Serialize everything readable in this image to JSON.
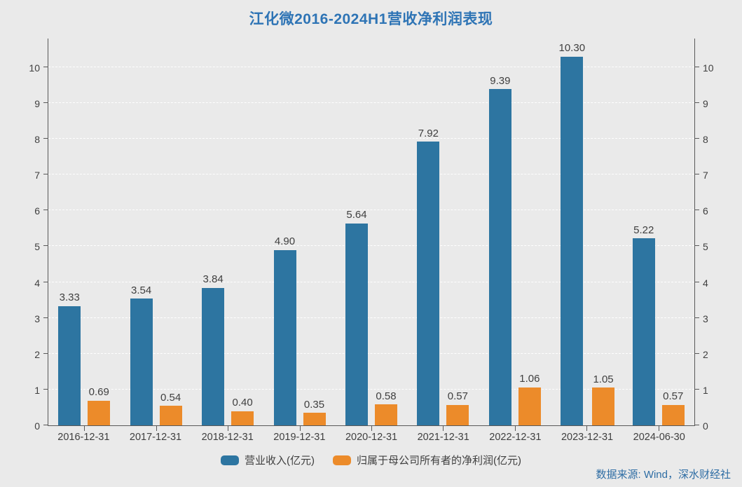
{
  "title": "江化微2016-2024H1营收净利润表现",
  "source": "数据来源: Wind，深水财经社",
  "colors": {
    "background": "#eaeaea",
    "title_text": "#2e74b5",
    "source_text": "#2e6da4",
    "label_text": "#3f3f3f",
    "axis_line": "#595959",
    "gridline": "#ffffff",
    "revenue_bar": "#2d75a1",
    "profit_bar": "#ec8b2a"
  },
  "chart_data": {
    "type": "bar",
    "title": "江化微2016-2024H1营收净利润表现",
    "categories": [
      "2016-12-31",
      "2017-12-31",
      "2018-12-31",
      "2019-12-31",
      "2020-12-31",
      "2021-12-31",
      "2022-12-31",
      "2023-12-31",
      "2024-06-30"
    ],
    "series": [
      {
        "name": "营业收入(亿元)",
        "color": "#2d75a1",
        "values": [
          3.33,
          3.54,
          3.84,
          4.9,
          5.64,
          7.92,
          9.39,
          10.3,
          5.22
        ]
      },
      {
        "name": "归属于母公司所有者的净利润(亿元)",
        "color": "#ec8b2a",
        "values": [
          0.69,
          0.54,
          0.4,
          0.35,
          0.58,
          0.57,
          1.06,
          1.05,
          0.57
        ]
      }
    ],
    "xlabel": "",
    "ylabel": "",
    "ylim": [
      0,
      10.82
    ],
    "yticks": [
      0,
      1,
      2,
      3,
      4,
      5,
      6,
      7,
      8,
      9,
      10
    ],
    "grid": true,
    "grid_style": "dashed",
    "dual_axis": true,
    "value_labels": true,
    "value_label_format": "2-decimals",
    "legend_position": "bottom"
  }
}
